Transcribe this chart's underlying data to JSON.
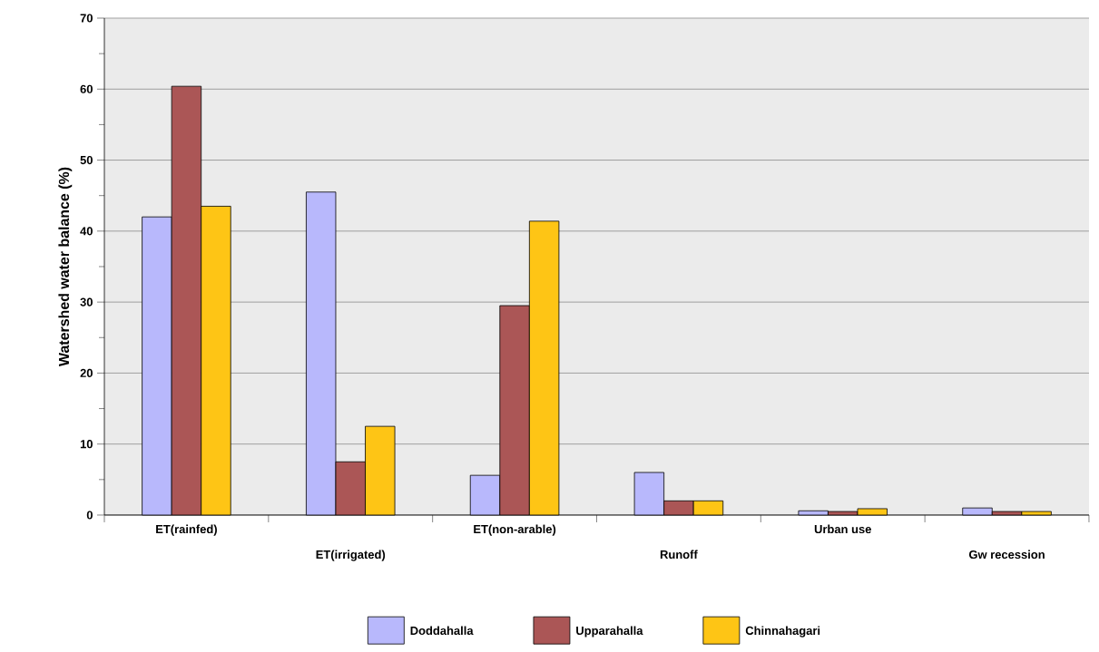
{
  "chart_data": {
    "type": "bar",
    "ylabel": "Watershed water balance (%)",
    "categories": [
      "ET(rainfed)",
      "ET(irrigated)",
      "ET(non-arable)",
      "Runoff",
      "Urban use",
      "Gw recession"
    ],
    "series": [
      {
        "name": "Doddahalla",
        "color": "#b8b8fc",
        "values": [
          42,
          45.5,
          5.6,
          6,
          0.6,
          1.0
        ]
      },
      {
        "name": "Upparahalla",
        "color": "#ab5656",
        "values": [
          60.4,
          7.5,
          29.5,
          2,
          0.5,
          0.5
        ]
      },
      {
        "name": "Chinnahagari",
        "color": "#fec515",
        "values": [
          43.5,
          12.5,
          41.4,
          2,
          0.9,
          0.5
        ]
      }
    ],
    "ylim": [
      0,
      70
    ],
    "yticks": [
      0,
      10,
      20,
      30,
      40,
      50,
      60,
      70
    ],
    "grid": "y",
    "legend": "bottom"
  }
}
